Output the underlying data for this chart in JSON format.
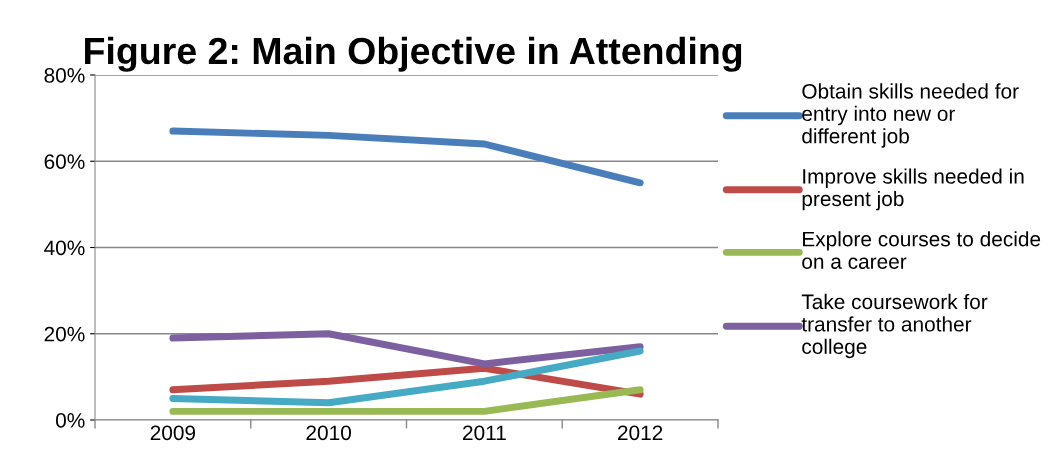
{
  "chart_data": {
    "type": "line",
    "title": "Figure 2: Main Objective in Attending",
    "categories": [
      "2009",
      "2010",
      "2011",
      "2012"
    ],
    "series": [
      {
        "name": "Obtain skills needed for entry into new or different job",
        "color": "#4a7ebb",
        "values": [
          67,
          66,
          64,
          55
        ]
      },
      {
        "name": "Improve skills needed in present job",
        "color": "#be4b48",
        "values": [
          7,
          9,
          12,
          6
        ]
      },
      {
        "name": "Explore courses to decide on a career",
        "color": "#98b954",
        "values": [
          2,
          2,
          2,
          7
        ]
      },
      {
        "name": "Take coursework for transfer to another college",
        "color": "#7d60a0",
        "values": [
          19,
          20,
          13,
          17
        ]
      },
      {
        "color": "#46aac5",
        "values": [
          5,
          4,
          9,
          16
        ]
      }
    ],
    "ylim": [
      0,
      80
    ],
    "yticks": [
      {
        "value": 0,
        "label": "0%"
      },
      {
        "value": 20,
        "label": "20%"
      },
      {
        "value": 40,
        "label": "40%"
      },
      {
        "value": 60,
        "label": "60%"
      },
      {
        "value": 80,
        "label": "80%"
      }
    ],
    "grid": "y",
    "legend": "right",
    "marker": "none",
    "line_style": "solid"
  }
}
